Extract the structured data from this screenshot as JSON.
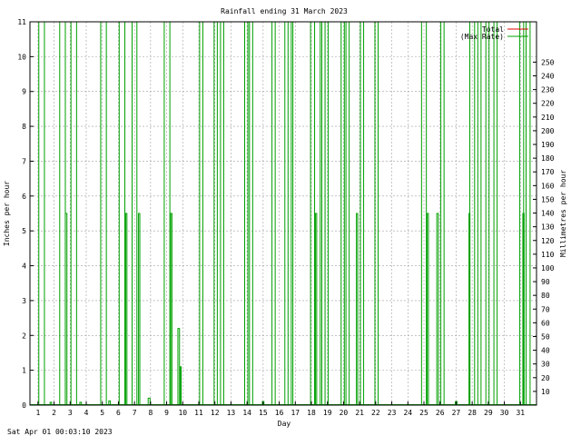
{
  "chart_data": {
    "type": "line",
    "title": "Rainfall ending 31 March 2023",
    "xlabel": "Day",
    "ylabel": "Inches per hour",
    "y2label": "Millimetres per hour",
    "timestamp": "Sat Apr 01 00:03:10 2023",
    "xlim": [
      0.5,
      32.0
    ],
    "ylim": [
      0,
      11
    ],
    "y2lim": [
      0,
      279.4
    ],
    "x_ticks": [
      1,
      2,
      3,
      4,
      5,
      6,
      7,
      8,
      9,
      10,
      11,
      12,
      13,
      14,
      15,
      16,
      17,
      18,
      19,
      20,
      21,
      22,
      23,
      24,
      25,
      26,
      27,
      28,
      29,
      30,
      31
    ],
    "y_ticks": [
      0,
      1,
      2,
      3,
      4,
      5,
      6,
      7,
      8,
      9,
      10,
      11
    ],
    "y2_ticks": [
      10,
      20,
      30,
      40,
      50,
      60,
      70,
      80,
      90,
      100,
      110,
      120,
      130,
      140,
      150,
      160,
      170,
      180,
      190,
      200,
      210,
      220,
      230,
      240,
      250
    ],
    "grid": true,
    "legend_position": "top-right",
    "series": [
      {
        "name": "Total",
        "color": "#e00000",
        "points": [
          [
            1.0,
            0
          ],
          [
            31.9,
            0
          ]
        ]
      },
      {
        "name": "(Max Rate)",
        "color": "#00a000",
        "spikes": [
          {
            "x": 1.05,
            "w": 0.35,
            "y": 11
          },
          {
            "x": 1.75,
            "w": 0.1,
            "y": 0.08
          },
          {
            "x": 2.35,
            "w": 0.35,
            "y": 11
          },
          {
            "x": 2.7,
            "w": 0.1,
            "y": 5.5
          },
          {
            "x": 3.05,
            "w": 0.35,
            "y": 11
          },
          {
            "x": 3.6,
            "w": 0.1,
            "y": 0.08
          },
          {
            "x": 4.9,
            "w": 0.35,
            "y": 11
          },
          {
            "x": 5.4,
            "w": 0.1,
            "y": 0.12
          },
          {
            "x": 6.05,
            "w": 0.35,
            "y": 11
          },
          {
            "x": 6.45,
            "w": 0.08,
            "y": 5.5
          },
          {
            "x": 6.85,
            "w": 0.3,
            "y": 11
          },
          {
            "x": 7.25,
            "w": 0.08,
            "y": 5.5
          },
          {
            "x": 7.85,
            "w": 0.12,
            "y": 0.2
          },
          {
            "x": 8.85,
            "w": 0.35,
            "y": 11
          },
          {
            "x": 9.25,
            "w": 0.08,
            "y": 5.5
          },
          {
            "x": 9.7,
            "w": 0.1,
            "y": 2.2
          },
          {
            "x": 9.85,
            "w": 0.05,
            "y": 1.1
          },
          {
            "x": 11.05,
            "w": 0.2,
            "y": 11
          },
          {
            "x": 11.95,
            "w": 0.2,
            "y": 11
          },
          {
            "x": 12.35,
            "w": 0.2,
            "y": 11
          },
          {
            "x": 13.85,
            "w": 0.2,
            "y": 11
          },
          {
            "x": 14.15,
            "w": 0.2,
            "y": 11
          },
          {
            "x": 14.95,
            "w": 0.1,
            "y": 0.1
          },
          {
            "x": 15.55,
            "w": 0.2,
            "y": 11
          },
          {
            "x": 16.35,
            "w": 0.2,
            "y": 11
          },
          {
            "x": 16.75,
            "w": 0.1,
            "y": 11
          },
          {
            "x": 17.95,
            "w": 0.25,
            "y": 11
          },
          {
            "x": 18.25,
            "w": 0.08,
            "y": 5.5
          },
          {
            "x": 18.55,
            "w": 0.1,
            "y": 11
          },
          {
            "x": 18.85,
            "w": 0.2,
            "y": 11
          },
          {
            "x": 19.85,
            "w": 0.2,
            "y": 11
          },
          {
            "x": 20.15,
            "w": 0.2,
            "y": 11
          },
          {
            "x": 20.8,
            "w": 0.08,
            "y": 5.5
          },
          {
            "x": 21.05,
            "w": 0.2,
            "y": 11
          },
          {
            "x": 21.95,
            "w": 0.2,
            "y": 11
          },
          {
            "x": 24.85,
            "w": 0.3,
            "y": 11
          },
          {
            "x": 25.2,
            "w": 0.08,
            "y": 5.5
          },
          {
            "x": 25.8,
            "w": 0.1,
            "y": 5.5
          },
          {
            "x": 26.05,
            "w": 0.2,
            "y": 11
          },
          {
            "x": 26.95,
            "w": 0.12,
            "y": 0.1
          },
          {
            "x": 27.85,
            "w": 0.3,
            "y": 11
          },
          {
            "x": 27.8,
            "w": 0.06,
            "y": 5.5
          },
          {
            "x": 28.35,
            "w": 0.2,
            "y": 11
          },
          {
            "x": 28.85,
            "w": 0.2,
            "y": 11
          },
          {
            "x": 29.35,
            "w": 0.2,
            "y": 11
          },
          {
            "x": 30.95,
            "w": 0.25,
            "y": 11
          },
          {
            "x": 31.15,
            "w": 0.08,
            "y": 5.5
          },
          {
            "x": 31.35,
            "w": 0.25,
            "y": 11
          }
        ]
      }
    ]
  }
}
